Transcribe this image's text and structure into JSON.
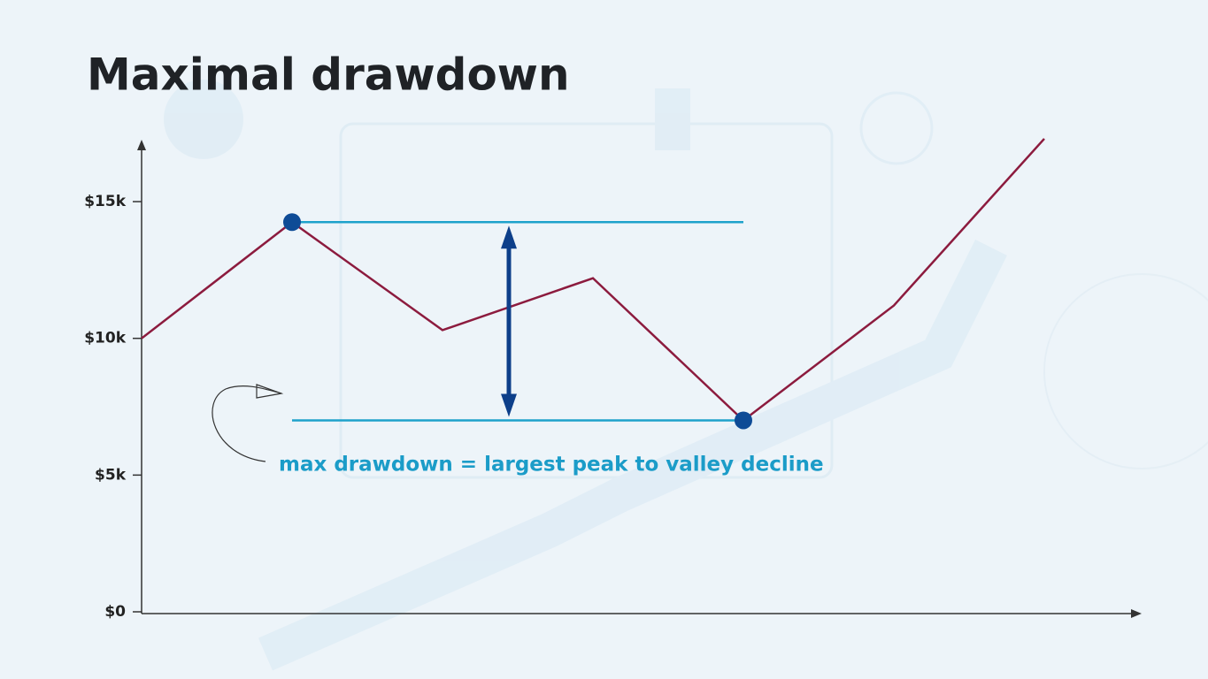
{
  "chart_data": {
    "type": "line",
    "title": "Maximal drawdown",
    "annotation": "max drawdown = largest peak to valley decline",
    "categories": [
      null,
      null,
      null,
      null,
      null,
      null,
      null
    ],
    "series": [
      {
        "name": null,
        "color": "#8c1b3e",
        "values": [
          10000,
          14250,
          10300,
          12200,
          7000,
          11200,
          17300
        ]
      }
    ],
    "ylim": [
      0,
      17200
    ],
    "yticks": [
      {
        "value": 0,
        "label": "$0"
      },
      {
        "value": 5000,
        "label": "$5k"
      },
      {
        "value": 10000,
        "label": "$10k"
      },
      {
        "value": 15000,
        "label": "$15k"
      }
    ],
    "peak_index": 1,
    "valley_index": 4,
    "marker_color": "#0e4b96",
    "level_color": "#1ea2cb",
    "arrow_color": "#0d3f8a"
  }
}
